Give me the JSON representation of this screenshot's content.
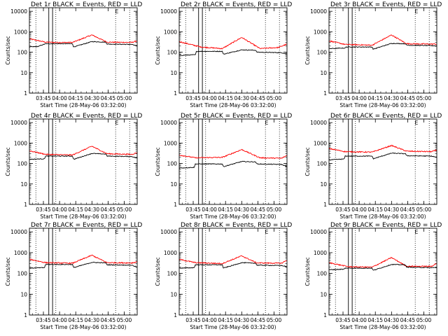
{
  "colors": {
    "events": "#000000",
    "lld": "#ff0000",
    "background": "#ffffff",
    "axis": "#000000"
  },
  "chart_data": {
    "type": "line",
    "time_axis": {
      "start_label": "Start Time (28-May-06 03:32:00)",
      "ticks": [
        "03:45",
        "04:00",
        "04:15",
        "04:30",
        "04:45",
        "05:00"
      ],
      "tick_minutes_after_start": [
        13,
        28,
        43,
        58,
        73,
        88
      ],
      "range_minutes": [
        0,
        100
      ]
    },
    "y_axis": {
      "label": "Counts/sec",
      "scale": "log",
      "ylim": [
        1,
        15000
      ],
      "ticks": [
        "1",
        "10",
        "100",
        "1000",
        "10000"
      ]
    },
    "markers": {
      "dotted_minutes": [
        6,
        24.5,
        80,
        93
      ],
      "solid_pairs_minutes": [
        [
          18,
          21.5
        ]
      ],
      "e_marker_label": "E"
    },
    "panels": [
      {
        "title": "Det 1r BLACK = Events, RED = LLD",
        "lld_profile": [
          [
            0,
            450
          ],
          [
            15,
            310
          ],
          [
            25,
            300
          ],
          [
            40,
            300
          ],
          [
            58,
            700
          ],
          [
            72,
            310
          ],
          [
            95,
            300
          ],
          [
            100,
            360
          ]
        ],
        "events_profile": [
          [
            0,
            180
          ],
          [
            8,
            190
          ],
          [
            15,
            260
          ],
          [
            40,
            260
          ],
          [
            41,
            180
          ],
          [
            58,
            330
          ],
          [
            71,
            310
          ],
          [
            72,
            250
          ],
          [
            95,
            240
          ],
          [
            100,
            200
          ]
        ]
      },
      {
        "title": "Det 2r BLACK = Events, RED = LLD",
        "lld_profile": [
          [
            0,
            330
          ],
          [
            20,
            180
          ],
          [
            40,
            150
          ],
          [
            58,
            530
          ],
          [
            75,
            150
          ],
          [
            92,
            170
          ],
          [
            100,
            250
          ]
        ],
        "events_profile": [
          [
            0,
            70
          ],
          [
            15,
            75
          ],
          [
            16,
            110
          ],
          [
            40,
            110
          ],
          [
            41,
            80
          ],
          [
            58,
            130
          ],
          [
            71,
            125
          ],
          [
            72,
            100
          ],
          [
            95,
            95
          ],
          [
            100,
            80
          ]
        ]
      },
      {
        "title": "Det 3r BLACK = Events, RED = LLD",
        "lld_profile": [
          [
            0,
            360
          ],
          [
            15,
            240
          ],
          [
            40,
            220
          ],
          [
            58,
            700
          ],
          [
            72,
            260
          ],
          [
            95,
            250
          ],
          [
            100,
            250
          ]
        ],
        "events_profile": [
          [
            0,
            150
          ],
          [
            15,
            160
          ],
          [
            16,
            180
          ],
          [
            40,
            180
          ],
          [
            41,
            140
          ],
          [
            58,
            270
          ],
          [
            71,
            260
          ],
          [
            72,
            220
          ],
          [
            95,
            210
          ],
          [
            100,
            200
          ]
        ]
      },
      {
        "title": "Det 4r BLACK = Events, RED = LLD",
        "lld_profile": [
          [
            0,
            420
          ],
          [
            15,
            280
          ],
          [
            40,
            260
          ],
          [
            58,
            700
          ],
          [
            72,
            300
          ],
          [
            95,
            280
          ],
          [
            100,
            340
          ]
        ],
        "events_profile": [
          [
            0,
            160
          ],
          [
            14,
            170
          ],
          [
            15,
            230
          ],
          [
            40,
            230
          ],
          [
            41,
            160
          ],
          [
            58,
            310
          ],
          [
            71,
            290
          ],
          [
            72,
            230
          ],
          [
            95,
            220
          ],
          [
            100,
            180
          ]
        ]
      },
      {
        "title": "Det 5r BLACK = Events, RED = LLD",
        "lld_profile": [
          [
            0,
            260
          ],
          [
            15,
            190
          ],
          [
            40,
            200
          ],
          [
            58,
            480
          ],
          [
            75,
            190
          ],
          [
            95,
            180
          ],
          [
            100,
            250
          ]
        ],
        "events_profile": [
          [
            0,
            60
          ],
          [
            14,
            65
          ],
          [
            15,
            95
          ],
          [
            40,
            95
          ],
          [
            41,
            70
          ],
          [
            58,
            125
          ],
          [
            71,
            120
          ],
          [
            72,
            95
          ],
          [
            95,
            90
          ],
          [
            100,
            70
          ]
        ]
      },
      {
        "title": "Det 6r BLACK = Events, RED = LLD",
        "lld_profile": [
          [
            0,
            540
          ],
          [
            15,
            380
          ],
          [
            40,
            360
          ],
          [
            58,
            760
          ],
          [
            72,
            400
          ],
          [
            95,
            380
          ],
          [
            100,
            450
          ]
        ],
        "events_profile": [
          [
            0,
            150
          ],
          [
            14,
            165
          ],
          [
            15,
            230
          ],
          [
            40,
            230
          ],
          [
            41,
            170
          ],
          [
            58,
            320
          ],
          [
            71,
            300
          ],
          [
            72,
            240
          ],
          [
            95,
            230
          ],
          [
            100,
            200
          ]
        ]
      },
      {
        "title": "Det 7r BLACK = Events, RED = LLD",
        "lld_profile": [
          [
            0,
            480
          ],
          [
            15,
            330
          ],
          [
            40,
            310
          ],
          [
            58,
            750
          ],
          [
            72,
            330
          ],
          [
            95,
            320
          ],
          [
            100,
            360
          ]
        ],
        "events_profile": [
          [
            0,
            180
          ],
          [
            14,
            190
          ],
          [
            15,
            270
          ],
          [
            40,
            270
          ],
          [
            41,
            190
          ],
          [
            58,
            340
          ],
          [
            71,
            320
          ],
          [
            72,
            260
          ],
          [
            95,
            250
          ],
          [
            100,
            200
          ]
        ]
      },
      {
        "title": "Det 8r BLACK = Events, RED = LLD",
        "lld_profile": [
          [
            0,
            480
          ],
          [
            15,
            330
          ],
          [
            40,
            300
          ],
          [
            58,
            700
          ],
          [
            72,
            320
          ],
          [
            95,
            310
          ],
          [
            100,
            440
          ]
        ],
        "events_profile": [
          [
            0,
            180
          ],
          [
            14,
            190
          ],
          [
            15,
            260
          ],
          [
            40,
            260
          ],
          [
            41,
            180
          ],
          [
            58,
            330
          ],
          [
            71,
            310
          ],
          [
            72,
            250
          ],
          [
            95,
            240
          ],
          [
            100,
            210
          ]
        ]
      },
      {
        "title": "Det 9r BLACK = Events, RED = LLD",
        "lld_profile": [
          [
            0,
            330
          ],
          [
            18,
            210
          ],
          [
            40,
            200
          ],
          [
            58,
            580
          ],
          [
            72,
            220
          ],
          [
            95,
            220
          ],
          [
            100,
            310
          ]
        ],
        "events_profile": [
          [
            0,
            150
          ],
          [
            14,
            160
          ],
          [
            15,
            180
          ],
          [
            40,
            180
          ],
          [
            41,
            140
          ],
          [
            58,
            270
          ],
          [
            71,
            260
          ],
          [
            72,
            200
          ],
          [
            95,
            190
          ],
          [
            100,
            190
          ]
        ]
      }
    ]
  }
}
